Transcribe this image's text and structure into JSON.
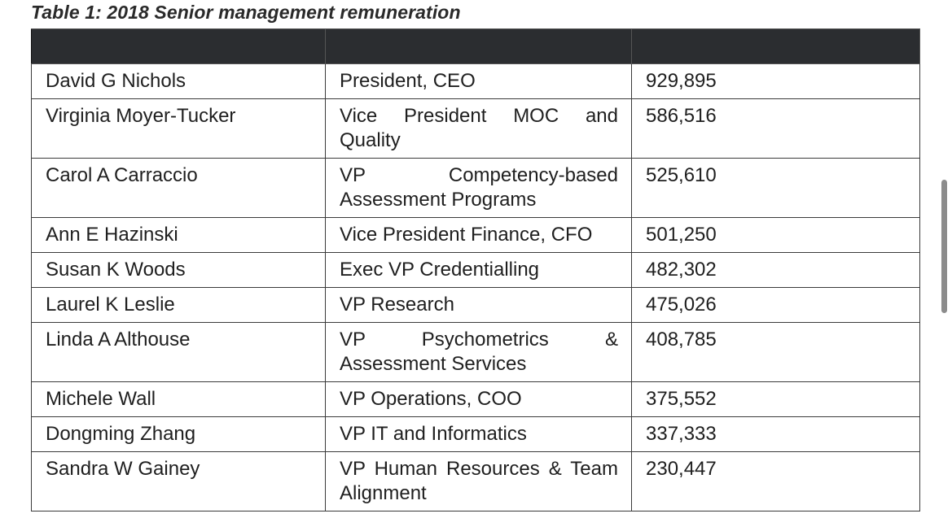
{
  "caption": "Table 1: 2018 Senior management remuneration",
  "table": {
    "headers": [
      "",
      "",
      ""
    ],
    "rows": [
      {
        "name": "David G Nichols",
        "role": "President, CEO",
        "amount": "929,895"
      },
      {
        "name": "Virginia Moyer-Tucker",
        "role": "Vice President MOC and Quality",
        "amount": "586,516"
      },
      {
        "name": "Carol A Carraccio",
        "role": "VP Competency-based Assessment Programs",
        "amount": "525,610"
      },
      {
        "name": "Ann E Hazinski",
        "role": "Vice President Finance, CFO",
        "amount": "501,250"
      },
      {
        "name": "Susan K Woods",
        "role": "Exec VP Credentialling",
        "amount": "482,302"
      },
      {
        "name": "Laurel K Leslie",
        "role": "VP Research",
        "amount": "475,026"
      },
      {
        "name": "Linda A Althouse",
        "role": "VP Psychometrics & Assessment Services",
        "amount": "408,785"
      },
      {
        "name": "Michele Wall",
        "role": "VP Operations, COO",
        "amount": "375,552"
      },
      {
        "name": "Dongming Zhang",
        "role": "VP IT and Informatics",
        "amount": "337,333"
      },
      {
        "name": "Sandra W Gainey",
        "role": "VP Human Resources & Team Alignment",
        "amount": "230,447"
      }
    ]
  },
  "colors": {
    "header_background": "#2b2d30",
    "border": "#3a3a3a",
    "scrollbar": "#8c8c8c"
  }
}
